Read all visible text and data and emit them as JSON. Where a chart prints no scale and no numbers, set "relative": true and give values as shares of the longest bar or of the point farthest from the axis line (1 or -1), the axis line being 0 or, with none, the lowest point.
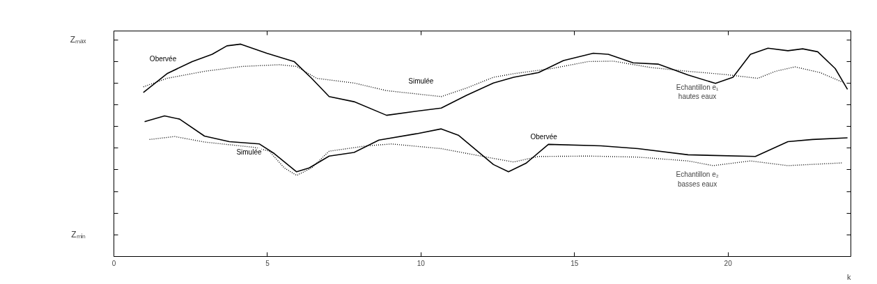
{
  "chart_data": {
    "type": "line",
    "relative": true,
    "xlabel": "k",
    "xlim": [
      0,
      24
    ],
    "xticks": [
      0,
      5,
      10,
      15,
      20
    ],
    "grid": false,
    "legend": false,
    "series": [
      {
        "name": "Obervée",
        "color": "#000000",
        "line_style": "solid",
        "x": [
          0.96,
          1.73,
          2.55,
          3.2,
          3.68,
          4.13,
          4.98,
          5.87,
          6.44,
          7.01,
          7.82,
          8.88,
          9.85,
          10.66,
          11.48,
          12.36,
          13.02,
          13.83,
          14.64,
          15.61,
          16.1,
          16.91,
          17.72,
          18.7,
          19.59,
          20.16,
          20.73,
          21.3,
          21.95,
          22.43,
          22.92,
          23.49,
          23.89
        ],
        "values": [
          0.772,
          0.861,
          0.918,
          0.952,
          0.992,
          1,
          0.957,
          0.918,
          0.839,
          0.753,
          0.729,
          0.665,
          0.684,
          0.699,
          0.759,
          0.817,
          0.844,
          0.866,
          0.923,
          0.957,
          0.952,
          0.912,
          0.906,
          0.855,
          0.815,
          0.844,
          0.952,
          0.981,
          0.969,
          0.978,
          0.964,
          0.885,
          0.787
        ]
      },
      {
        "name": "Simulée",
        "color": "#000000",
        "line_style": "dotted",
        "x": [
          0.96,
          1.73,
          2.95,
          4.17,
          5.39,
          5.95,
          6.6,
          7.82,
          8.88,
          10.66,
          11.48,
          12.36,
          13.02,
          14.25,
          15.45,
          16.26,
          17.48,
          18.7,
          19.91,
          20.97,
          21.54,
          22.18,
          23.0,
          23.73
        ],
        "values": [
          0.799,
          0.839,
          0.872,
          0.895,
          0.903,
          0.895,
          0.839,
          0.817,
          0.781,
          0.753,
          0.793,
          0.844,
          0.861,
          0.885,
          0.918,
          0.92,
          0.89,
          0.872,
          0.857,
          0.839,
          0.872,
          0.893,
          0.866,
          0.821
        ]
      },
      {
        "name": "Obervée",
        "color": "#000000",
        "line_style": "solid",
        "x": [
          1.0,
          1.65,
          2.14,
          2.95,
          3.76,
          4.74,
          5.22,
          5.95,
          6.36,
          7.01,
          7.82,
          8.63,
          9.85,
          10.66,
          11.23,
          12.36,
          12.85,
          13.42,
          14.15,
          15.86,
          17.07,
          18.7,
          20.89,
          21.95,
          22.75,
          23.89
        ],
        "values": [
          0.635,
          0.662,
          0.647,
          0.567,
          0.541,
          0.53,
          0.485,
          0.399,
          0.417,
          0.473,
          0.49,
          0.548,
          0.578,
          0.601,
          0.57,
          0.433,
          0.399,
          0.439,
          0.528,
          0.521,
          0.508,
          0.479,
          0.471,
          0.541,
          0.551,
          0.559
        ]
      },
      {
        "name": "Simulée",
        "color": "#000000",
        "line_style": "dotted",
        "x": [
          1.16,
          1.98,
          2.95,
          4.57,
          5.06,
          5.55,
          5.95,
          6.44,
          7.01,
          8.23,
          9.04,
          10.66,
          12.36,
          13.02,
          13.83,
          15.45,
          17.07,
          18.7,
          19.51,
          20.73,
          21.95,
          23.73
        ],
        "values": [
          0.551,
          0.565,
          0.539,
          0.514,
          0.496,
          0.417,
          0.382,
          0.417,
          0.496,
          0.521,
          0.53,
          0.508,
          0.462,
          0.445,
          0.471,
          0.473,
          0.468,
          0.45,
          0.428,
          0.45,
          0.428,
          0.441
        ]
      }
    ],
    "annotations": [
      "Zₘₐₓ",
      "Zₘᵢₙ",
      "Echantillon e₁\nhautes eaux",
      "Echantillon e₂\nbasses eaux"
    ]
  }
}
